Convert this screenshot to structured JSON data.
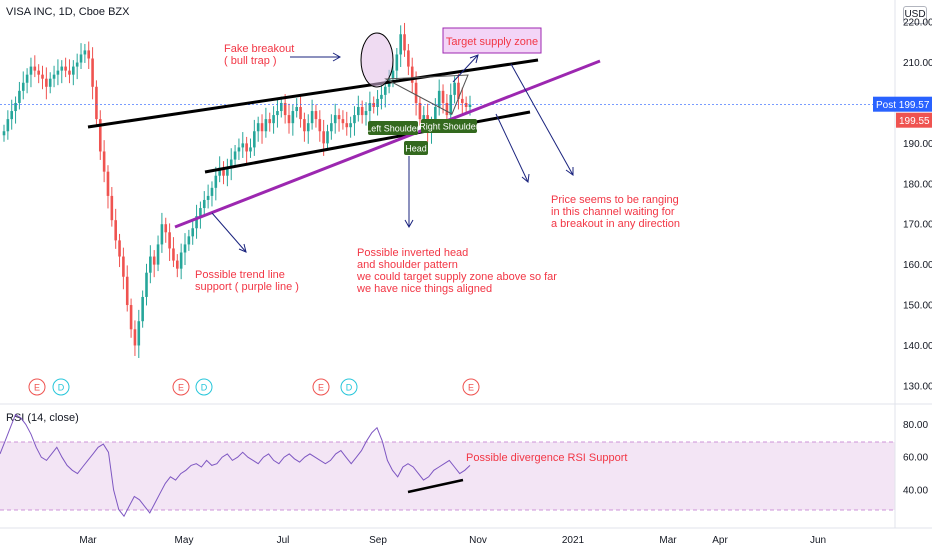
{
  "chart": {
    "symbol_title": "VISA INC, 1D, Cboe BZX",
    "currency": "USD",
    "rsi_title": "RSI (14, close)",
    "colors": {
      "up": "#26a69a",
      "down": "#ef5350",
      "purple_line": "#9c27b0",
      "rsi_line": "#7e57c2",
      "annotation_red": "#f23645"
    }
  },
  "chart_data": [
    {
      "type": "candlestick",
      "title": "VISA INC, 1D, Cboe BZX",
      "x_tick_labels": [
        "Mar",
        "May",
        "Jul",
        "Sep",
        "Nov",
        "2021",
        "Mar",
        "Apr",
        "Jun"
      ],
      "y_tick_labels": [
        "130.00",
        "140.00",
        "150.00",
        "160.00",
        "170.00",
        "180.00",
        "190.00",
        "200.00",
        "210.00",
        "220.00"
      ],
      "ylim": [
        127,
        223
      ],
      "price_labels": [
        {
          "label": "Post",
          "value": "199.57",
          "color": "#2962ff"
        },
        {
          "label": "",
          "value": "199.55",
          "color": "#ef5350"
        }
      ],
      "close_series_approx": [
        193,
        196,
        198,
        200,
        203,
        205,
        207,
        209,
        208,
        207,
        206,
        204,
        206,
        207,
        208,
        209,
        208,
        207,
        209,
        210,
        212,
        213,
        211,
        204,
        196,
        188,
        183,
        177,
        171,
        166,
        162,
        157,
        150,
        144,
        140,
        146,
        152,
        158,
        162,
        160,
        165,
        170,
        168,
        164,
        161,
        159,
        163,
        165,
        167,
        169,
        172,
        174,
        176,
        177,
        179,
        182,
        184,
        182,
        184,
        186,
        188,
        189,
        190,
        188,
        189,
        193,
        195,
        193,
        196,
        195,
        197,
        198,
        200,
        197,
        195,
        198,
        199,
        196,
        193,
        195,
        198,
        196,
        193,
        190,
        193,
        195,
        197,
        196,
        195,
        194,
        195,
        197,
        199,
        197,
        198,
        200,
        199,
        201,
        202,
        204,
        206,
        208,
        212,
        217,
        213,
        209,
        205,
        200,
        196,
        197,
        193,
        195,
        199,
        203,
        200,
        197,
        202,
        205,
        201,
        200,
        199,
        199.57
      ],
      "events": [
        "E",
        "D",
        "E",
        "D",
        "E",
        "D",
        "E"
      ],
      "annotations": [
        "Fake breakout\n( bull trap )",
        "Target supply zone",
        "Left Shoulder",
        "Head",
        "Right Shoulder",
        "Price seems to be ranging\nin this channel waiting for\na breakout in any direction",
        "Possible inverted head\nand shoulder pattern\nwe could target supply zone above so far\nwe have nice things aligned",
        "Possible trend line\nsupport ( purple line )"
      ]
    },
    {
      "type": "line",
      "title": "RSI (14, close)",
      "y_tick_labels": [
        "40.00",
        "60.00",
        "80.00"
      ],
      "ylim": [
        18,
        90
      ],
      "band": [
        30,
        70
      ],
      "values_approx": [
        62,
        70,
        78,
        86,
        84,
        80,
        74,
        66,
        60,
        58,
        62,
        66,
        60,
        55,
        52,
        50,
        54,
        58,
        62,
        66,
        68,
        63,
        40,
        28,
        24,
        30,
        36,
        34,
        30,
        26,
        32,
        38,
        44,
        48,
        46,
        50,
        52,
        55,
        56,
        54,
        58,
        55,
        56,
        60,
        62,
        58,
        60,
        63,
        60,
        58,
        56,
        60,
        62,
        58,
        56,
        60,
        62,
        59,
        57,
        60,
        62,
        60,
        58,
        56,
        58,
        62,
        64,
        60,
        56,
        60,
        64,
        70,
        75,
        78,
        70,
        58,
        52,
        48,
        54,
        56,
        54,
        50,
        46,
        48,
        52,
        54,
        56,
        58,
        54,
        50,
        52,
        55
      ],
      "annotations": [
        "Possible divergence RSI Support"
      ]
    }
  ]
}
